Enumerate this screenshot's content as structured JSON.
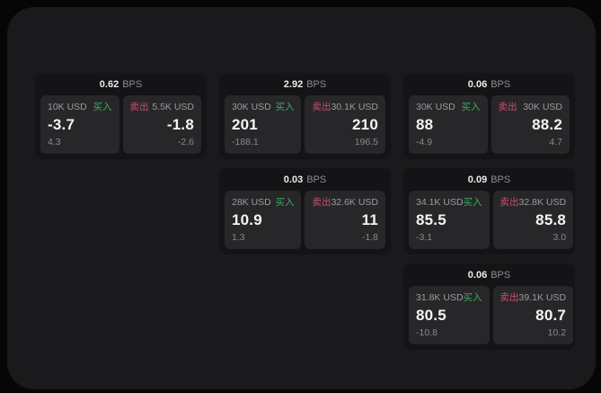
{
  "ui": {
    "unit_label": "BPS",
    "buy_label": "买入",
    "sell_label": "卖出"
  },
  "colors": {
    "buy": "#45a566",
    "sell": "#c9506b",
    "surface": "#1a1a1c",
    "card": "#141416",
    "panel": "#272729",
    "value_text": "#f4f4f5",
    "muted_text": "#9c9c9f"
  },
  "cards": [
    {
      "bps": "0.62",
      "buy": {
        "amount": "10K USD",
        "value": "-3.7",
        "sub": "4.3"
      },
      "sell": {
        "amount": "5.5K USD",
        "value": "-1.8",
        "sub": "-2.6"
      }
    },
    {
      "bps": "2.92",
      "buy": {
        "amount": "30K USD",
        "value": "201",
        "sub": "-188.1"
      },
      "sell": {
        "amount": "30.1K USD",
        "value": "210",
        "sub": "196.5"
      }
    },
    {
      "bps": "0.06",
      "buy": {
        "amount": "30K USD",
        "value": "88",
        "sub": "-4.9"
      },
      "sell": {
        "amount": "30K USD",
        "value": "88.2",
        "sub": "4.7"
      }
    },
    {
      "bps": "0.03",
      "buy": {
        "amount": "28K USD",
        "value": "10.9",
        "sub": "1.3"
      },
      "sell": {
        "amount": "32.6K USD",
        "value": "11",
        "sub": "-1.8"
      }
    },
    {
      "bps": "0.09",
      "buy": {
        "amount": "34.1K USD",
        "value": "85.5",
        "sub": "-3.1"
      },
      "sell": {
        "amount": "32.8K USD",
        "value": "85.8",
        "sub": "3.0"
      }
    },
    {
      "bps": "0.06",
      "buy": {
        "amount": "31.8K USD",
        "value": "80.5",
        "sub": "-10.8"
      },
      "sell": {
        "amount": "39.1K USD",
        "value": "80.7",
        "sub": "10.2"
      }
    }
  ]
}
